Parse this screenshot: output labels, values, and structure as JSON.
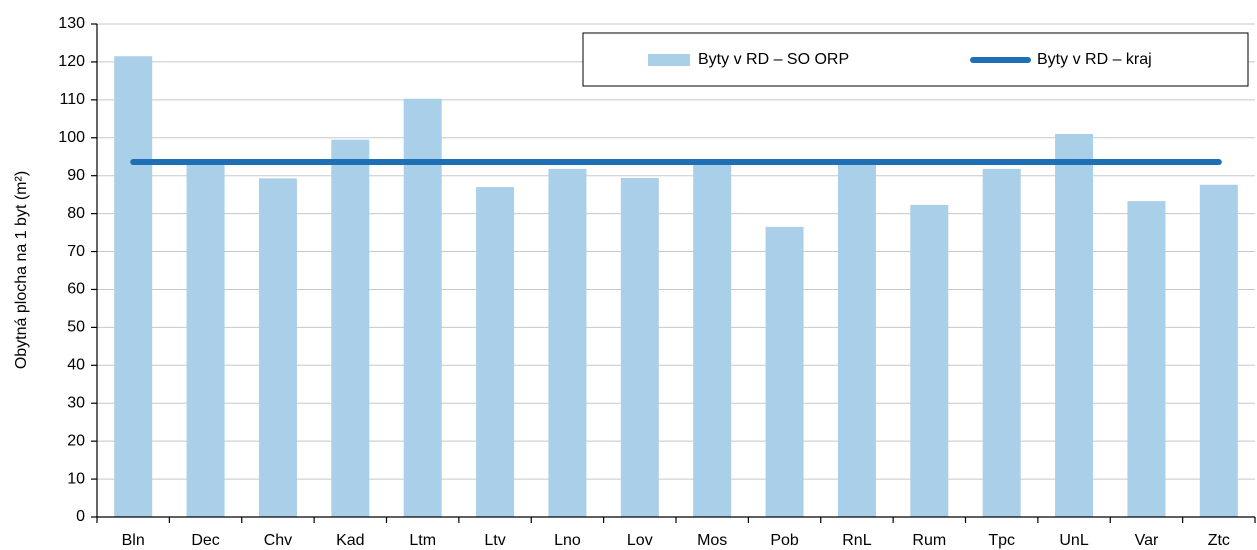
{
  "chart_data": {
    "type": "bar",
    "ylabel": "Obytná plocha na 1 byt (m²)",
    "categories": [
      "Bln",
      "Dec",
      "Chv",
      "Kad",
      "Ltm",
      "Ltv",
      "Lno",
      "Lov",
      "Mos",
      "Pob",
      "RnL",
      "Rum",
      "Tpc",
      "UnL",
      "Var",
      "Ztc"
    ],
    "series": [
      {
        "name": "Byty v RD – SO ORP",
        "type": "bar",
        "color": "#a9cfe9",
        "values": [
          121.5,
          93,
          89.3,
          99.5,
          110.3,
          87,
          91.8,
          89.4,
          94,
          76.5,
          93.5,
          82.3,
          91.8,
          101,
          83.3,
          87.6
        ]
      },
      {
        "name": "Byty v RD – kraj",
        "type": "line",
        "color": "#1f6fb6",
        "values": [
          93.6,
          93.6,
          93.6,
          93.6,
          93.6,
          93.6,
          93.6,
          93.6,
          93.6,
          93.6,
          93.6,
          93.6,
          93.6,
          93.6,
          93.6,
          93.6
        ]
      }
    ],
    "ylim": [
      0,
      130
    ],
    "yticks": [
      0,
      10,
      20,
      30,
      40,
      50,
      60,
      70,
      80,
      90,
      100,
      110,
      120,
      130
    ],
    "grid": true,
    "legend": "top-right"
  }
}
